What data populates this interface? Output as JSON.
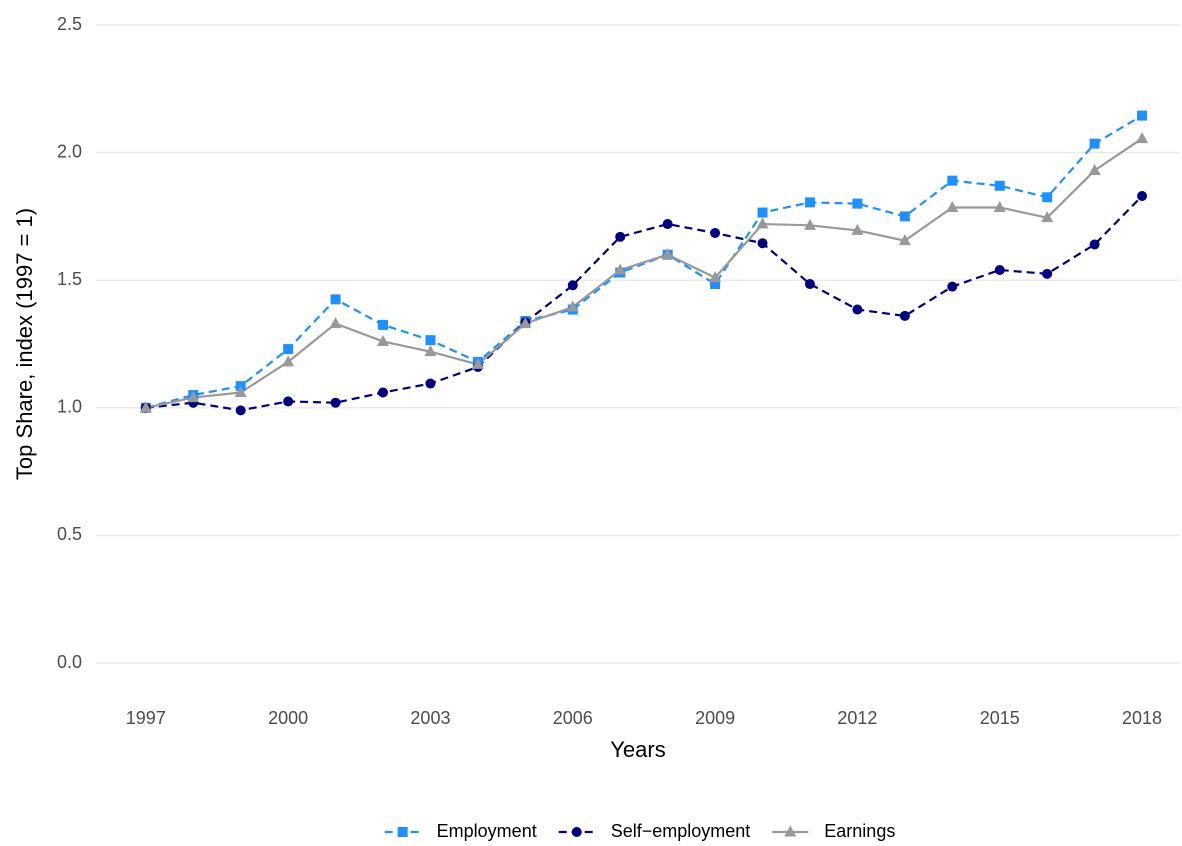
{
  "chart_data": {
    "type": "line",
    "x_label": "Years",
    "y_label": "Top Share, index (1997 = 1)",
    "x": [
      1997,
      1998,
      1999,
      2000,
      2001,
      2002,
      2003,
      2004,
      2005,
      2006,
      2007,
      2008,
      2009,
      2010,
      2011,
      2012,
      2013,
      2014,
      2015,
      2016,
      2017,
      2018
    ],
    "series": [
      {
        "name": "Employment",
        "color": "#1e90ff",
        "line_style": "dashed",
        "marker": "square",
        "values": [
          1.0,
          1.05,
          1.085,
          1.23,
          1.425,
          1.325,
          1.265,
          1.18,
          1.34,
          1.385,
          1.53,
          1.6,
          1.485,
          1.765,
          1.805,
          1.8,
          1.75,
          1.89,
          1.87,
          1.825,
          2.035,
          2.145
        ]
      },
      {
        "name": "Self−employment",
        "color": "#000080",
        "line_style": "dashed",
        "marker": "circle",
        "values": [
          1.0,
          1.02,
          0.99,
          1.025,
          1.02,
          1.06,
          1.095,
          1.16,
          1.335,
          1.48,
          1.67,
          1.72,
          1.685,
          1.645,
          1.485,
          1.385,
          1.36,
          1.475,
          1.54,
          1.525,
          1.64,
          1.83
        ]
      },
      {
        "name": "Earnings",
        "color": "#999999",
        "line_style": "solid",
        "marker": "triangle",
        "values": [
          1.0,
          1.04,
          1.06,
          1.18,
          1.33,
          1.26,
          1.22,
          1.17,
          1.33,
          1.395,
          1.54,
          1.6,
          1.51,
          1.72,
          1.715,
          1.695,
          1.655,
          1.785,
          1.785,
          1.745,
          1.93,
          2.055
        ]
      }
    ],
    "xlim": [
      1995.95,
      2018.8
    ],
    "xticks": [
      1997,
      2000,
      2003,
      2006,
      2009,
      2012,
      2015,
      2018
    ],
    "ylim": [
      0,
      2.5
    ],
    "yticks": [
      {
        "value": 0,
        "label": "0.0"
      },
      {
        "value": 0.5,
        "label": "0.5"
      },
      {
        "value": 1,
        "label": "1.0"
      },
      {
        "value": 1.5,
        "label": "1.5"
      },
      {
        "value": 2,
        "label": "2.0"
      },
      {
        "value": 2.5,
        "label": "2.5"
      }
    ],
    "grid": true,
    "legend": "bottom"
  }
}
